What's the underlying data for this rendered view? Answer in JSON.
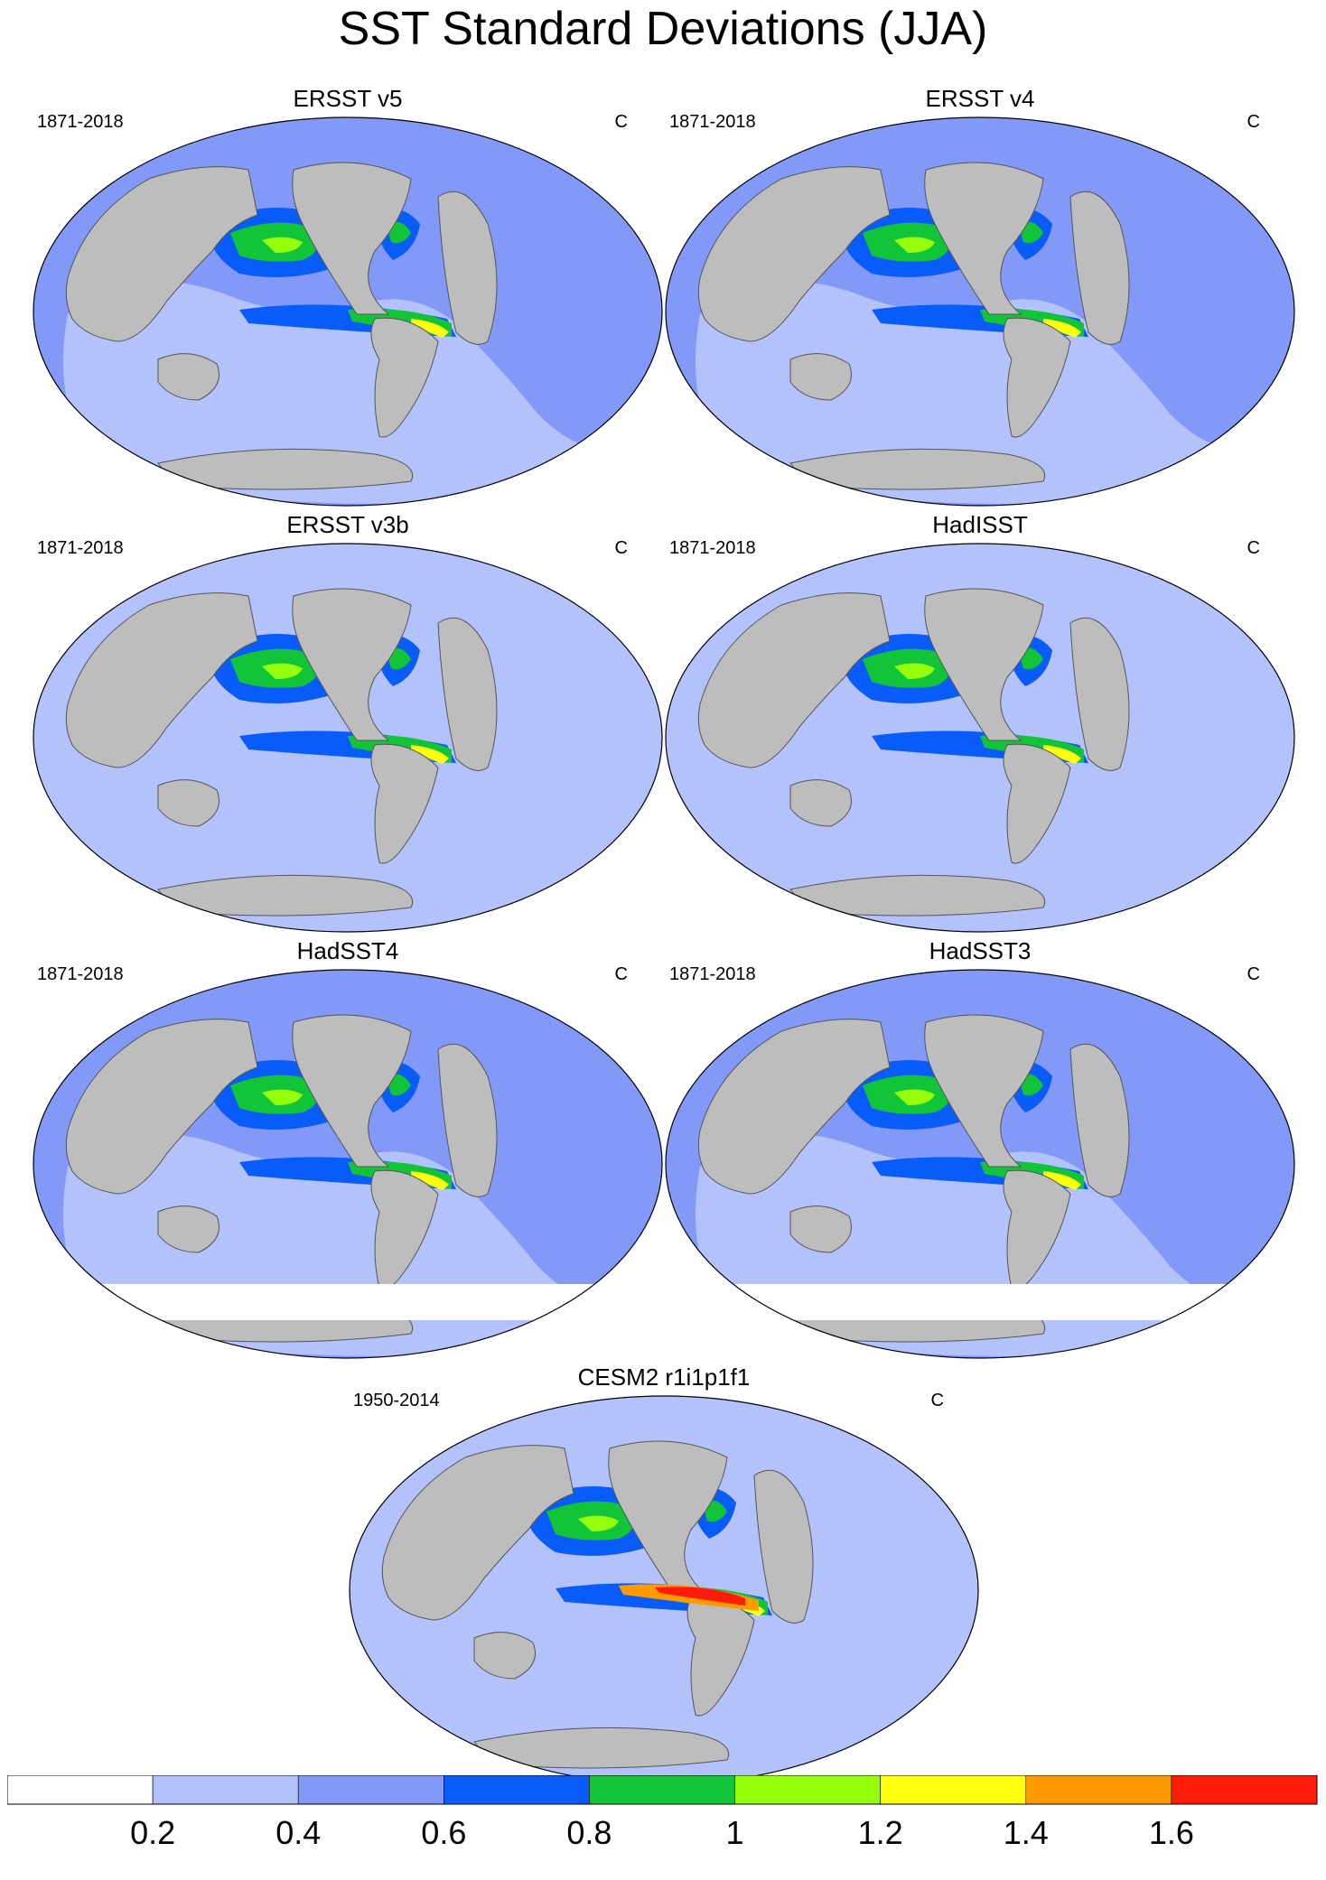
{
  "title": "SST Standard Deviations (JJA)",
  "panels": [
    {
      "name": "ERSST v5",
      "period": "1871-2018",
      "units": "C"
    },
    {
      "name": "ERSST v4",
      "period": "1871-2018",
      "units": "C"
    },
    {
      "name": "ERSST v3b",
      "period": "1871-2018",
      "units": "C"
    },
    {
      "name": "HadISST",
      "period": "1871-2018",
      "units": "C"
    },
    {
      "name": "HadSST4",
      "period": "1871-2018",
      "units": "C"
    },
    {
      "name": "HadSST3",
      "period": "1871-2018",
      "units": "C"
    },
    {
      "name": "CESM2 r1i1p1f1",
      "period": "1950-2014",
      "units": "C"
    }
  ],
  "colorbar": {
    "labels": [
      "0.2",
      "0.4",
      "0.6",
      "0.8",
      "1",
      "1.2",
      "1.4",
      "1.6"
    ],
    "colors": [
      "#ffffff",
      "#b3c2fb",
      "#8399f7",
      "#0a5cf9",
      "#12c438",
      "#96ff0c",
      "#ffff10",
      "#ff9a00",
      "#ff1c08"
    ]
  },
  "colors": {
    "land": "#bdbdbd",
    "ocean_base": "#8399f7"
  }
}
